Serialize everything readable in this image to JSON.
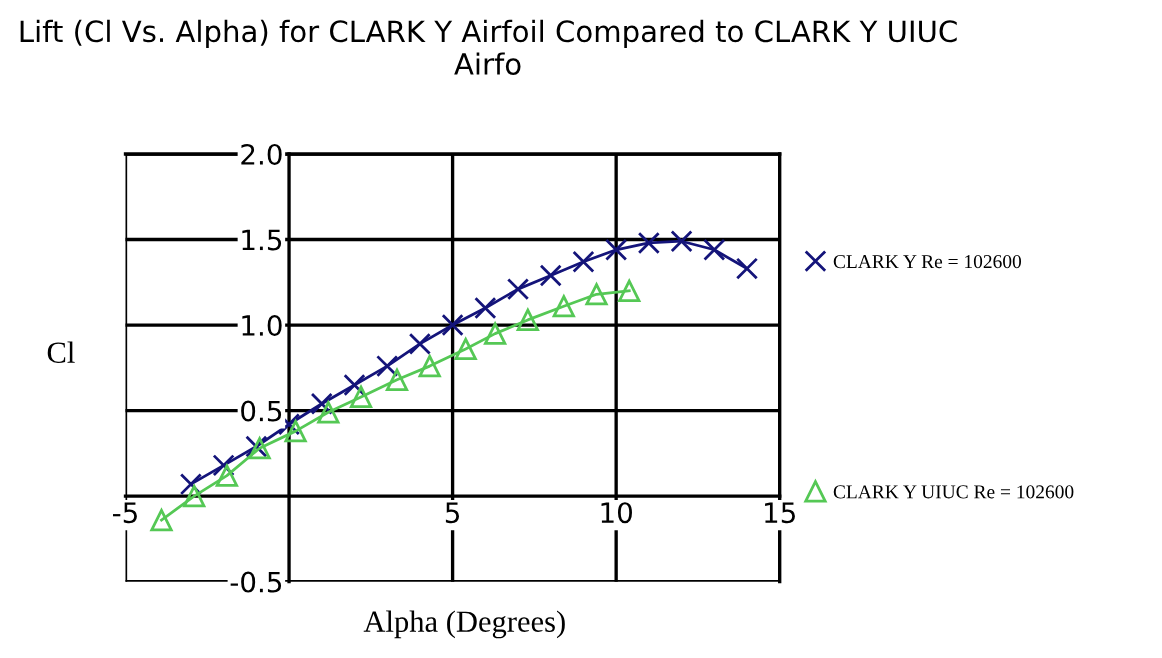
{
  "chart_data": {
    "type": "line",
    "title": "Lift (Cl Vs. Alpha) for CLARK Y Airfoil Compared to CLARK Y UIUC Airfo",
    "xlabel": "Alpha (Degrees)",
    "ylabel": "Cl",
    "xlim": [
      -5,
      15
    ],
    "xticks": [
      -5,
      5,
      10,
      15
    ],
    "ylim": [
      -0.5,
      2.0
    ],
    "yticks": [
      {
        "value": -0.5,
        "label": "-0.5"
      },
      {
        "value": 0.5,
        "label": "0.5"
      },
      {
        "value": 1.0,
        "label": "1.0"
      },
      {
        "value": 1.5,
        "label": "1.5"
      },
      {
        "value": 2.0,
        "label": "2.0"
      }
    ],
    "grid": true,
    "legend": "right",
    "line_style": "solid",
    "series": [
      {
        "name": "CLARK Y Re = 102600",
        "color": "#14147a",
        "marker": "cross",
        "x": [
          -3,
          -2,
          -1,
          0,
          1,
          2,
          3,
          4,
          5,
          6,
          7,
          8,
          9,
          10,
          11,
          12,
          13,
          14
        ],
        "values": [
          0.07,
          0.18,
          0.29,
          0.42,
          0.54,
          0.65,
          0.76,
          0.89,
          1.0,
          1.1,
          1.21,
          1.29,
          1.37,
          1.44,
          1.48,
          1.49,
          1.44,
          1.33
        ]
      },
      {
        "name": "CLARK Y UIUC Re = 102600",
        "color": "#55c855",
        "marker": "triangle",
        "x": [
          -3.9,
          -2.9,
          -1.9,
          -0.9,
          0.2,
          1.2,
          2.2,
          3.3,
          4.3,
          5.4,
          6.3,
          7.3,
          8.4,
          9.4,
          10.4
        ],
        "values": [
          -0.14,
          0.0,
          0.12,
          0.28,
          0.38,
          0.49,
          0.58,
          0.68,
          0.76,
          0.86,
          0.95,
          1.03,
          1.11,
          1.18,
          1.2
        ]
      }
    ]
  }
}
